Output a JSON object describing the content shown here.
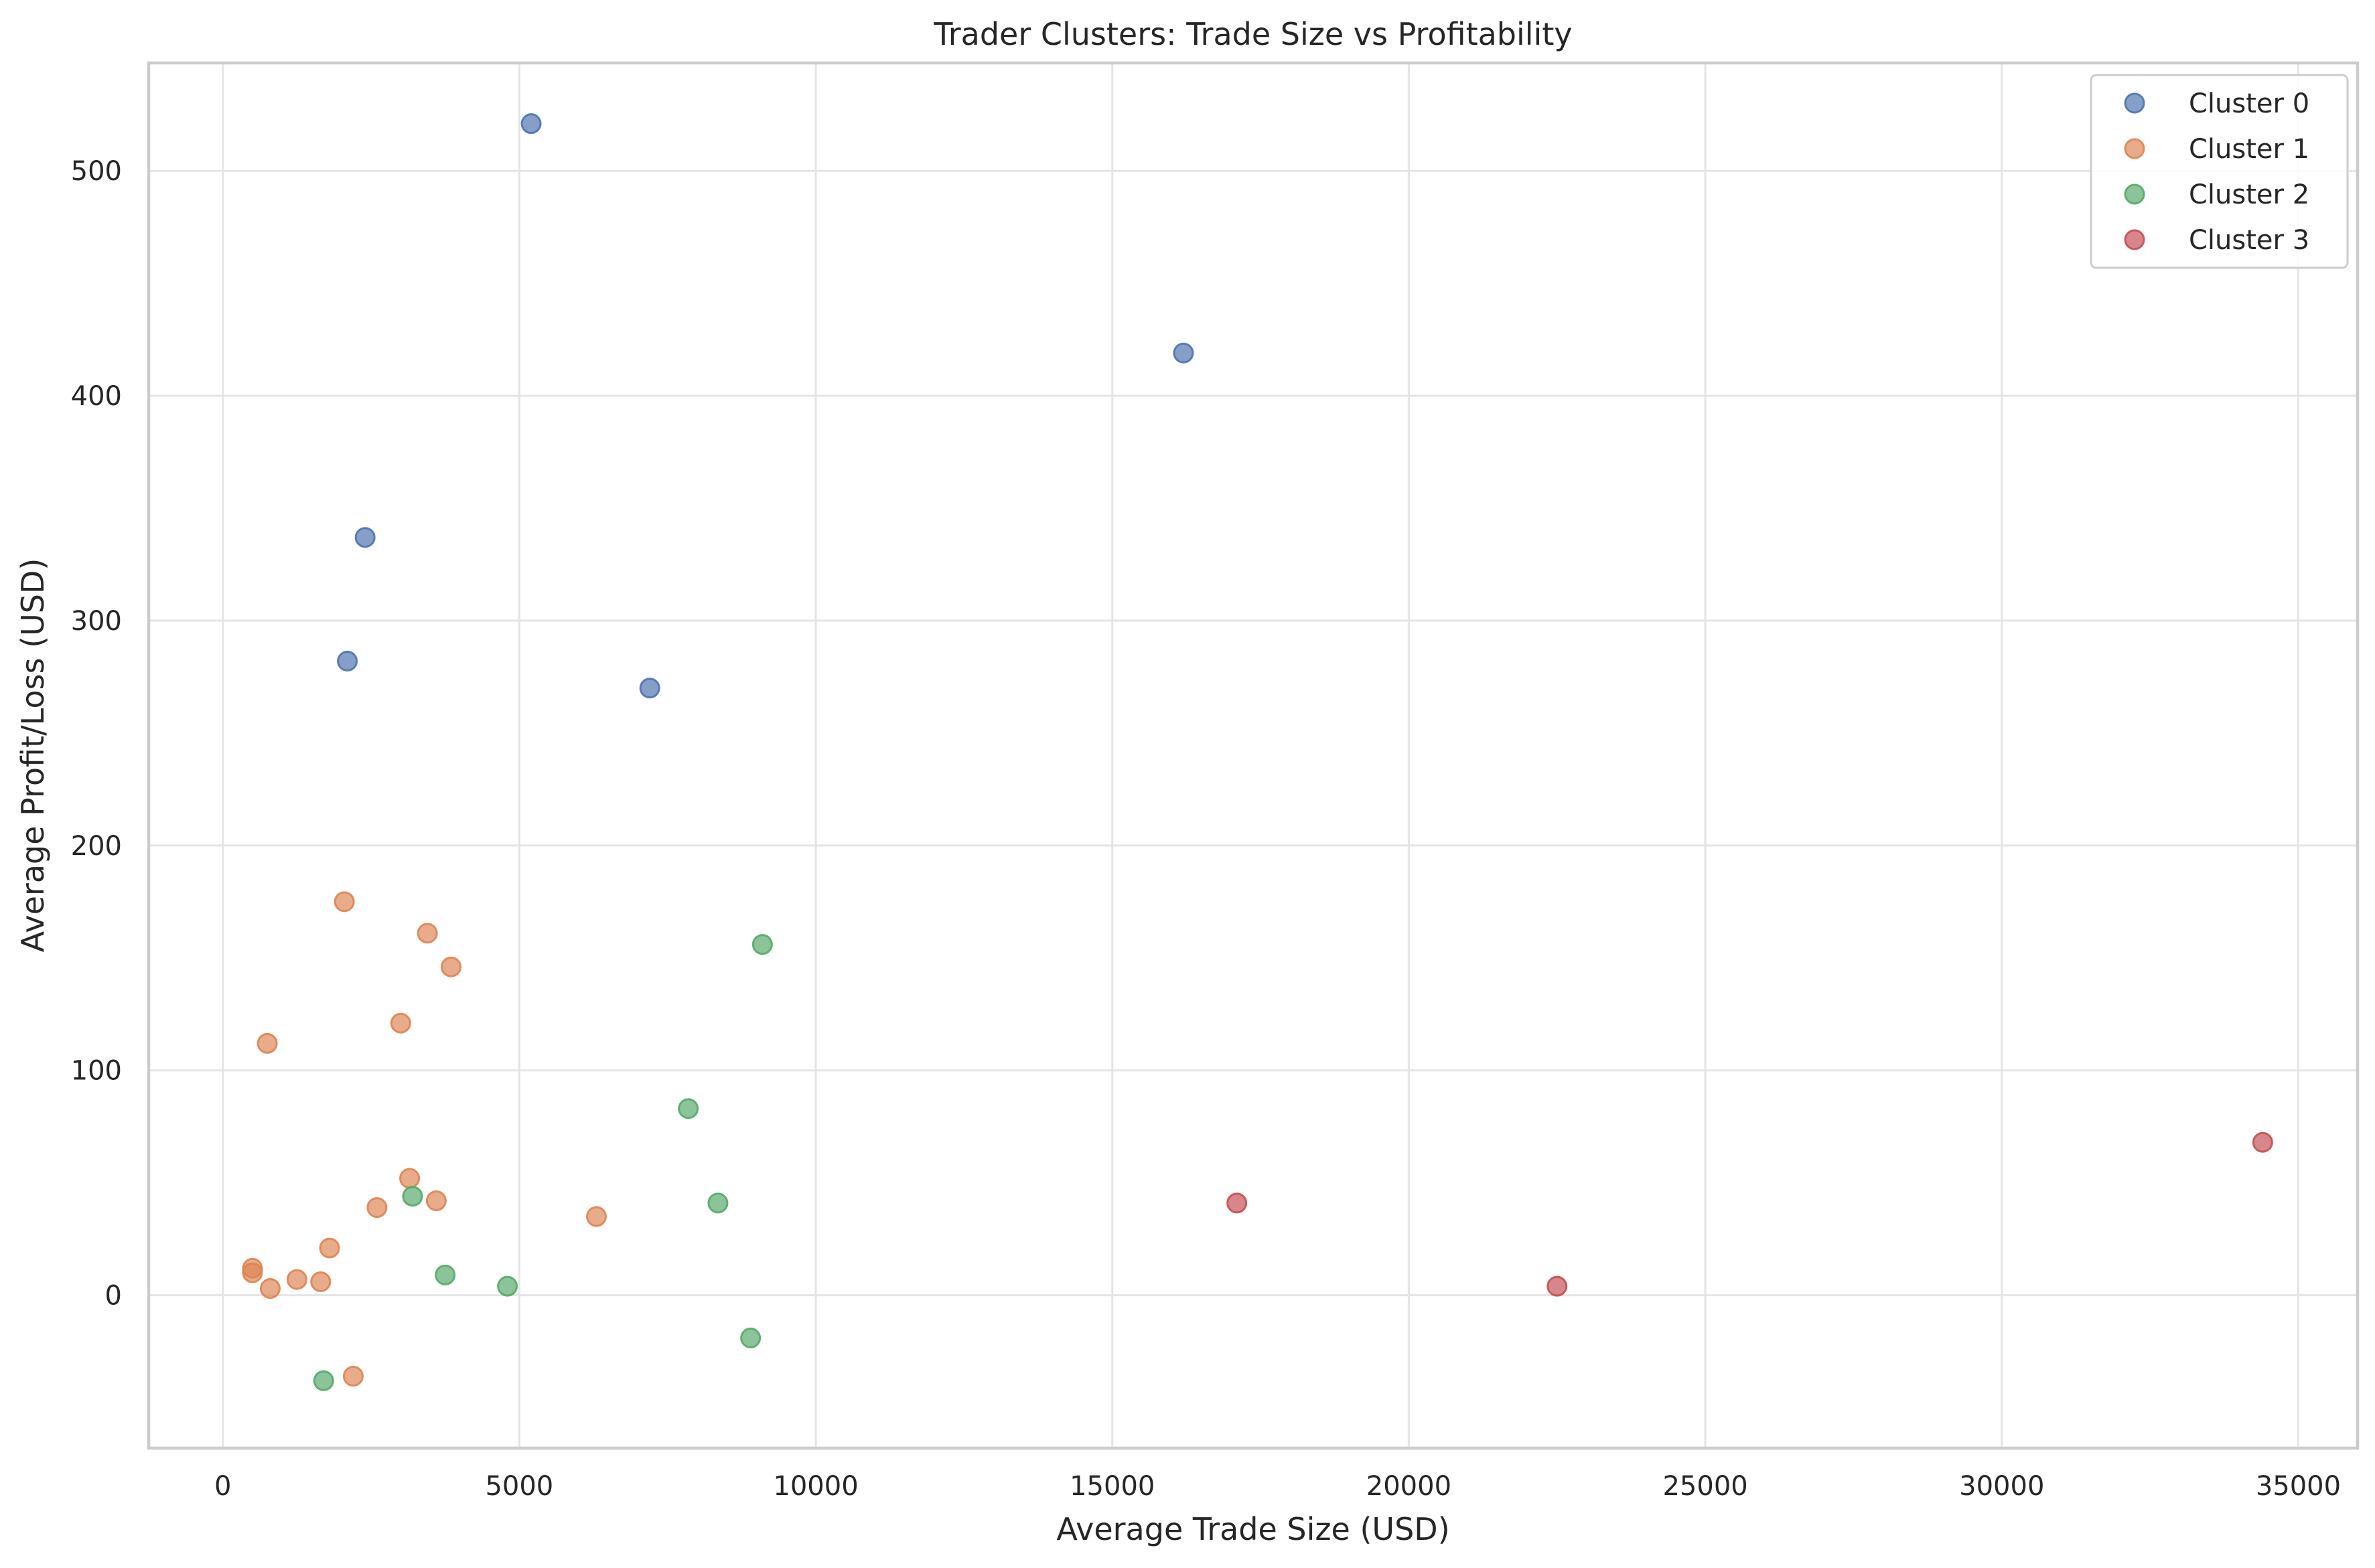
{
  "chart_data": {
    "type": "scatter",
    "title": "Trader Clusters: Trade Size vs Profitability",
    "xlabel": "Average Trade Size (USD)",
    "ylabel": "Average Profit/Loss (USD)",
    "xlim": [
      -1250,
      36000
    ],
    "ylim": [
      -68,
      548
    ],
    "xticks": [
      0,
      5000,
      10000,
      15000,
      20000,
      25000,
      30000,
      35000
    ],
    "yticks": [
      0,
      100,
      200,
      300,
      400,
      500
    ],
    "grid": true,
    "legend_position": "top-right",
    "series": [
      {
        "name": "Cluster 0",
        "color": "#4c72b0",
        "points": [
          {
            "x": 5200,
            "y": 521
          },
          {
            "x": 16200,
            "y": 419
          },
          {
            "x": 2400,
            "y": 337
          },
          {
            "x": 2100,
            "y": 282
          },
          {
            "x": 7200,
            "y": 270
          }
        ]
      },
      {
        "name": "Cluster 1",
        "color": "#dd8452",
        "points": [
          {
            "x": 2050,
            "y": 175
          },
          {
            "x": 3450,
            "y": 161
          },
          {
            "x": 3850,
            "y": 146
          },
          {
            "x": 3000,
            "y": 121
          },
          {
            "x": 750,
            "y": 112
          },
          {
            "x": 3150,
            "y": 52
          },
          {
            "x": 3600,
            "y": 42
          },
          {
            "x": 2600,
            "y": 39
          },
          {
            "x": 6300,
            "y": 35
          },
          {
            "x": 1800,
            "y": 21
          },
          {
            "x": 500,
            "y": 12
          },
          {
            "x": 500,
            "y": 10
          },
          {
            "x": 1250,
            "y": 7
          },
          {
            "x": 1650,
            "y": 6
          },
          {
            "x": 800,
            "y": 3
          },
          {
            "x": 2200,
            "y": -36
          }
        ]
      },
      {
        "name": "Cluster 2",
        "color": "#55a868",
        "points": [
          {
            "x": 9100,
            "y": 156
          },
          {
            "x": 7850,
            "y": 83
          },
          {
            "x": 8350,
            "y": 41
          },
          {
            "x": 3200,
            "y": 44
          },
          {
            "x": 3750,
            "y": 9
          },
          {
            "x": 4800,
            "y": 4
          },
          {
            "x": 8900,
            "y": -19
          },
          {
            "x": 1700,
            "y": -38
          }
        ]
      },
      {
        "name": "Cluster 3",
        "color": "#c44e52",
        "points": [
          {
            "x": 34400,
            "y": 68
          },
          {
            "x": 17100,
            "y": 41
          },
          {
            "x": 22500,
            "y": 4
          }
        ]
      }
    ]
  }
}
